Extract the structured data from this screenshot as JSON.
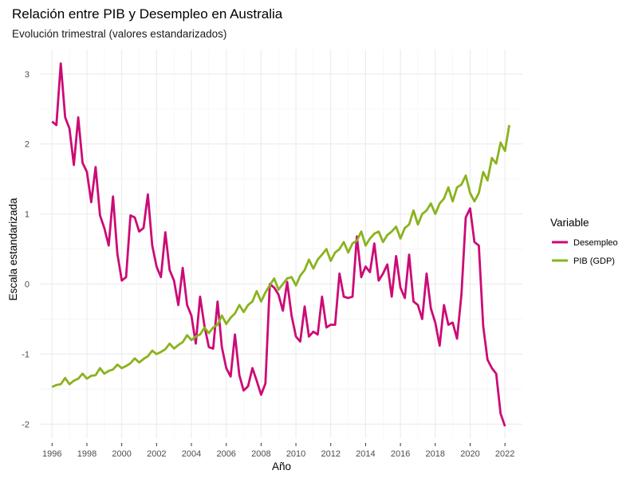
{
  "chart_data": {
    "type": "line",
    "title": "Relación entre PIB y Desempleo en Australia",
    "subtitle": "Evolución trimestral (valores estandarizados)",
    "xlabel": "Año",
    "ylabel": "Escala estandarizada",
    "xlim": [
      1995.3,
      2023.0
    ],
    "ylim": [
      -2.2,
      3.35
    ],
    "x_ticks": [
      "1996",
      "1998",
      "2000",
      "2002",
      "2004",
      "2006",
      "2008",
      "2010",
      "2012",
      "2014",
      "2016",
      "2018",
      "2020",
      "2022"
    ],
    "y_ticks": [
      "-2",
      "-1",
      "0",
      "1",
      "2",
      "3"
    ],
    "grid": true,
    "legend": {
      "title": "Variable",
      "position": "right"
    },
    "series": [
      {
        "name": "Desempleo",
        "color": "#CC0A76",
        "points": [
          [
            1996.0,
            2.32
          ],
          [
            1996.25,
            2.27
          ],
          [
            1996.5,
            3.15
          ],
          [
            1996.75,
            2.38
          ],
          [
            1997.0,
            2.22
          ],
          [
            1997.25,
            1.7
          ],
          [
            1997.5,
            2.38
          ],
          [
            1997.75,
            1.73
          ],
          [
            1998.0,
            1.6
          ],
          [
            1998.25,
            1.17
          ],
          [
            1998.5,
            1.67
          ],
          [
            1998.75,
            0.98
          ],
          [
            1999.0,
            0.8
          ],
          [
            1999.25,
            0.55
          ],
          [
            1999.5,
            1.25
          ],
          [
            1999.75,
            0.43
          ],
          [
            2000.0,
            0.05
          ],
          [
            2000.25,
            0.1
          ],
          [
            2000.5,
            0.98
          ],
          [
            2000.75,
            0.95
          ],
          [
            2001.0,
            0.75
          ],
          [
            2001.25,
            0.8
          ],
          [
            2001.5,
            1.28
          ],
          [
            2001.75,
            0.55
          ],
          [
            2002.0,
            0.25
          ],
          [
            2002.25,
            0.1
          ],
          [
            2002.5,
            0.74
          ],
          [
            2002.75,
            0.2
          ],
          [
            2003.0,
            0.05
          ],
          [
            2003.25,
            -0.3
          ],
          [
            2003.5,
            0.23
          ],
          [
            2003.75,
            -0.3
          ],
          [
            2004.0,
            -0.45
          ],
          [
            2004.25,
            -0.85
          ],
          [
            2004.5,
            -0.18
          ],
          [
            2004.75,
            -0.6
          ],
          [
            2005.0,
            -0.9
          ],
          [
            2005.25,
            -0.92
          ],
          [
            2005.5,
            -0.25
          ],
          [
            2005.75,
            -0.9
          ],
          [
            2006.0,
            -1.2
          ],
          [
            2006.25,
            -1.32
          ],
          [
            2006.5,
            -0.72
          ],
          [
            2006.75,
            -1.3
          ],
          [
            2007.0,
            -1.52
          ],
          [
            2007.25,
            -1.46
          ],
          [
            2007.5,
            -1.2
          ],
          [
            2007.75,
            -1.38
          ],
          [
            2008.0,
            -1.58
          ],
          [
            2008.25,
            -1.42
          ],
          [
            2008.5,
            0.0
          ],
          [
            2008.75,
            -0.05
          ],
          [
            2009.0,
            -0.15
          ],
          [
            2009.25,
            -0.38
          ],
          [
            2009.5,
            0.03
          ],
          [
            2009.75,
            -0.45
          ],
          [
            2010.0,
            -0.75
          ],
          [
            2010.25,
            -0.82
          ],
          [
            2010.5,
            -0.32
          ],
          [
            2010.75,
            -0.75
          ],
          [
            2011.0,
            -0.68
          ],
          [
            2011.25,
            -0.72
          ],
          [
            2011.5,
            -0.18
          ],
          [
            2011.75,
            -0.62
          ],
          [
            2012.0,
            -0.58
          ],
          [
            2012.25,
            -0.58
          ],
          [
            2012.5,
            0.15
          ],
          [
            2012.75,
            -0.18
          ],
          [
            2013.0,
            -0.2
          ],
          [
            2013.25,
            -0.18
          ],
          [
            2013.5,
            0.68
          ],
          [
            2013.75,
            0.1
          ],
          [
            2014.0,
            0.25
          ],
          [
            2014.25,
            0.17
          ],
          [
            2014.5,
            0.58
          ],
          [
            2014.75,
            0.05
          ],
          [
            2015.0,
            0.15
          ],
          [
            2015.25,
            0.28
          ],
          [
            2015.5,
            -0.18
          ],
          [
            2015.75,
            0.4
          ],
          [
            2016.0,
            -0.05
          ],
          [
            2016.25,
            -0.2
          ],
          [
            2016.5,
            0.42
          ],
          [
            2016.75,
            -0.25
          ],
          [
            2017.0,
            -0.3
          ],
          [
            2017.25,
            -0.5
          ],
          [
            2017.5,
            0.15
          ],
          [
            2017.75,
            -0.35
          ],
          [
            2018.0,
            -0.55
          ],
          [
            2018.25,
            -0.88
          ],
          [
            2018.5,
            -0.3
          ],
          [
            2018.75,
            -0.58
          ],
          [
            2019.0,
            -0.55
          ],
          [
            2019.25,
            -0.78
          ],
          [
            2019.5,
            -0.15
          ],
          [
            2019.75,
            0.95
          ],
          [
            2020.0,
            1.08
          ],
          [
            2020.25,
            0.6
          ],
          [
            2020.5,
            0.55
          ],
          [
            2020.75,
            -0.6
          ],
          [
            2021.0,
            -1.08
          ],
          [
            2021.25,
            -1.2
          ],
          [
            2021.5,
            -1.28
          ],
          [
            2021.75,
            -1.85
          ],
          [
            2022.0,
            -2.03
          ]
        ]
      },
      {
        "name": "PIB (GDP)",
        "color": "#8AB31F",
        "points": [
          [
            1996.0,
            -1.47
          ],
          [
            1996.25,
            -1.44
          ],
          [
            1996.5,
            -1.43
          ],
          [
            1996.75,
            -1.34
          ],
          [
            1997.0,
            -1.43
          ],
          [
            1997.25,
            -1.38
          ],
          [
            1997.5,
            -1.35
          ],
          [
            1997.75,
            -1.28
          ],
          [
            1998.0,
            -1.35
          ],
          [
            1998.25,
            -1.31
          ],
          [
            1998.5,
            -1.3
          ],
          [
            1998.75,
            -1.2
          ],
          [
            1999.0,
            -1.28
          ],
          [
            1999.25,
            -1.24
          ],
          [
            1999.5,
            -1.22
          ],
          [
            1999.75,
            -1.15
          ],
          [
            2000.0,
            -1.2
          ],
          [
            2000.25,
            -1.17
          ],
          [
            2000.5,
            -1.13
          ],
          [
            2000.75,
            -1.06
          ],
          [
            2001.0,
            -1.12
          ],
          [
            2001.25,
            -1.07
          ],
          [
            2001.5,
            -1.03
          ],
          [
            2001.75,
            -0.95
          ],
          [
            2002.0,
            -1.0
          ],
          [
            2002.25,
            -0.97
          ],
          [
            2002.5,
            -0.93
          ],
          [
            2002.75,
            -0.85
          ],
          [
            2003.0,
            -0.92
          ],
          [
            2003.25,
            -0.87
          ],
          [
            2003.5,
            -0.83
          ],
          [
            2003.75,
            -0.73
          ],
          [
            2004.0,
            -0.8
          ],
          [
            2004.25,
            -0.75
          ],
          [
            2004.5,
            -0.72
          ],
          [
            2004.75,
            -0.62
          ],
          [
            2005.0,
            -0.7
          ],
          [
            2005.25,
            -0.62
          ],
          [
            2005.5,
            -0.58
          ],
          [
            2005.75,
            -0.45
          ],
          [
            2006.0,
            -0.57
          ],
          [
            2006.25,
            -0.48
          ],
          [
            2006.5,
            -0.42
          ],
          [
            2006.75,
            -0.3
          ],
          [
            2007.0,
            -0.4
          ],
          [
            2007.25,
            -0.3
          ],
          [
            2007.5,
            -0.25
          ],
          [
            2007.75,
            -0.1
          ],
          [
            2008.0,
            -0.25
          ],
          [
            2008.25,
            -0.12
          ],
          [
            2008.5,
            -0.02
          ],
          [
            2008.75,
            0.08
          ],
          [
            2009.0,
            -0.08
          ],
          [
            2009.25,
            0.0
          ],
          [
            2009.5,
            0.08
          ],
          [
            2009.75,
            0.1
          ],
          [
            2010.0,
            -0.02
          ],
          [
            2010.25,
            0.12
          ],
          [
            2010.5,
            0.2
          ],
          [
            2010.75,
            0.35
          ],
          [
            2011.0,
            0.22
          ],
          [
            2011.25,
            0.35
          ],
          [
            2011.5,
            0.42
          ],
          [
            2011.75,
            0.5
          ],
          [
            2012.0,
            0.33
          ],
          [
            2012.25,
            0.45
          ],
          [
            2012.5,
            0.5
          ],
          [
            2012.75,
            0.6
          ],
          [
            2013.0,
            0.45
          ],
          [
            2013.25,
            0.58
          ],
          [
            2013.5,
            0.62
          ],
          [
            2013.75,
            0.75
          ],
          [
            2014.0,
            0.55
          ],
          [
            2014.25,
            0.65
          ],
          [
            2014.5,
            0.72
          ],
          [
            2014.75,
            0.75
          ],
          [
            2015.0,
            0.6
          ],
          [
            2015.25,
            0.7
          ],
          [
            2015.5,
            0.75
          ],
          [
            2015.75,
            0.82
          ],
          [
            2016.0,
            0.65
          ],
          [
            2016.25,
            0.8
          ],
          [
            2016.5,
            0.85
          ],
          [
            2016.75,
            1.05
          ],
          [
            2017.0,
            0.85
          ],
          [
            2017.25,
            1.0
          ],
          [
            2017.5,
            1.05
          ],
          [
            2017.75,
            1.15
          ],
          [
            2018.0,
            1.0
          ],
          [
            2018.25,
            1.15
          ],
          [
            2018.5,
            1.22
          ],
          [
            2018.75,
            1.38
          ],
          [
            2019.0,
            1.18
          ],
          [
            2019.25,
            1.38
          ],
          [
            2019.5,
            1.42
          ],
          [
            2019.75,
            1.55
          ],
          [
            2020.0,
            1.3
          ],
          [
            2020.25,
            1.18
          ],
          [
            2020.5,
            1.3
          ],
          [
            2020.75,
            1.6
          ],
          [
            2021.0,
            1.48
          ],
          [
            2021.25,
            1.8
          ],
          [
            2021.5,
            1.72
          ],
          [
            2021.75,
            2.02
          ],
          [
            2022.0,
            1.9
          ],
          [
            2022.25,
            2.27
          ]
        ]
      }
    ]
  }
}
